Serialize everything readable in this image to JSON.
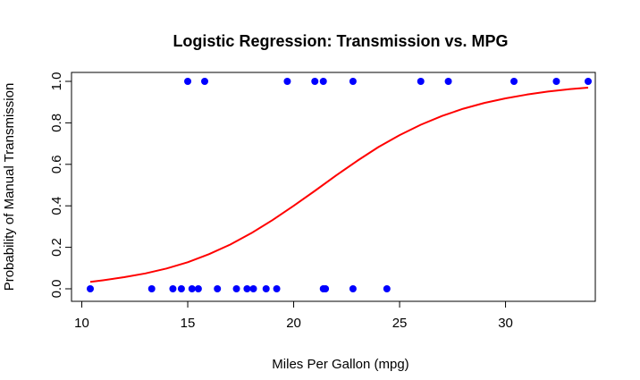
{
  "chart_data": {
    "type": "scatter",
    "title": "Logistic Regression: Transmission vs. MPG",
    "xlabel": "Miles Per Gallon (mpg)",
    "ylabel": "Probability of Manual Transmission",
    "xlim": [
      10.4,
      33.9
    ],
    "ylim": [
      0,
      1
    ],
    "x_ticks": [
      10,
      15,
      20,
      25,
      30
    ],
    "x_tick_labels": [
      "10",
      "15",
      "20",
      "25",
      "30"
    ],
    "y_ticks": [
      0,
      0.2,
      0.4,
      0.6,
      0.8,
      1.0
    ],
    "y_tick_labels": [
      "0.0",
      "0.2",
      "0.4",
      "0.6",
      "0.8",
      "1.0"
    ],
    "grid": false,
    "series": [
      {
        "kind": "points",
        "color": "#0000ff",
        "x": [
          10.4,
          13.3,
          14.3,
          14.7,
          15.2,
          15.5,
          16.4,
          17.3,
          17.8,
          18.1,
          18.7,
          19.2,
          21.4,
          21.5,
          22.8,
          24.4,
          15.0,
          15.8,
          19.7,
          21.0,
          21.4,
          22.8,
          26.0,
          27.3,
          30.4,
          32.4,
          33.9
        ],
        "y": [
          0,
          0,
          0,
          0,
          0,
          0,
          0,
          0,
          0,
          0,
          0,
          0,
          0,
          0,
          0,
          0,
          1,
          1,
          1,
          1,
          1,
          1,
          1,
          1,
          1,
          1,
          1
        ]
      },
      {
        "kind": "curve",
        "color": "#ff0000",
        "x": [
          10.4,
          11.0,
          12.0,
          13.0,
          14.0,
          15.0,
          16.0,
          17.0,
          18.0,
          19.0,
          20.0,
          21.0,
          22.0,
          23.0,
          24.0,
          25.0,
          26.0,
          27.0,
          28.0,
          29.0,
          30.0,
          31.0,
          32.0,
          33.0,
          33.9
        ],
        "y": [
          0.033,
          0.041,
          0.056,
          0.074,
          0.098,
          0.128,
          0.167,
          0.213,
          0.268,
          0.331,
          0.4,
          0.472,
          0.546,
          0.617,
          0.683,
          0.741,
          0.791,
          0.833,
          0.868,
          0.896,
          0.918,
          0.936,
          0.951,
          0.962,
          0.97
        ]
      }
    ]
  }
}
